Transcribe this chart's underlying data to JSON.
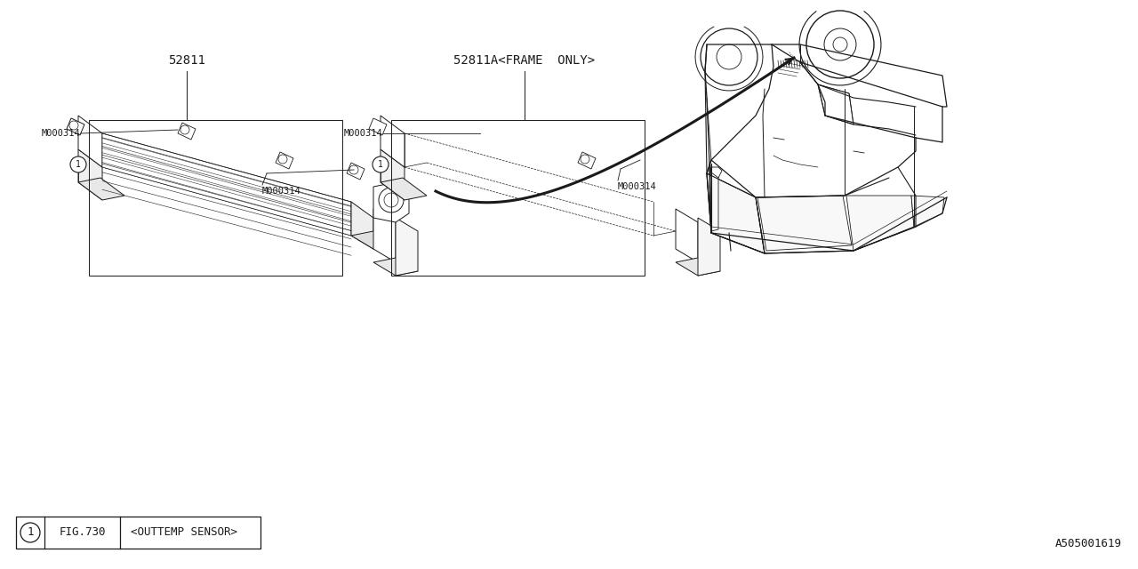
{
  "bg_color": "#FFFFFF",
  "line_color": "#1a1a1a",
  "label_52811": "52811",
  "label_52811A": "52811A<FRAME  ONLY>",
  "label_m000314": "M000314",
  "label_fig": "FIG.730",
  "label_sensor": "<OUTTEMP SENSOR>",
  "label_circle1": "1",
  "label_partnum": "A505001619",
  "fig_width": 12.8,
  "fig_height": 6.4
}
